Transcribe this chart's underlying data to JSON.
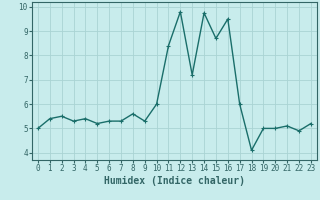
{
  "xlabel": "Humidex (Indice chaleur)",
  "x": [
    0,
    1,
    2,
    3,
    4,
    5,
    6,
    7,
    8,
    9,
    10,
    11,
    12,
    13,
    14,
    15,
    16,
    17,
    18,
    19,
    20,
    21,
    22,
    23
  ],
  "y": [
    5.0,
    5.4,
    5.5,
    5.3,
    5.4,
    5.2,
    5.3,
    5.3,
    5.6,
    5.3,
    6.0,
    8.4,
    9.8,
    7.2,
    9.75,
    8.7,
    9.5,
    6.0,
    4.1,
    5.0,
    5.0,
    5.1,
    4.9,
    5.2
  ],
  "line_color": "#1a6e6a",
  "marker": "+",
  "marker_size": 3,
  "background_color": "#c8ecec",
  "grid_color": "#aad4d4",
  "axis_color": "#336666",
  "ylim_min": 3.7,
  "ylim_max": 10.2,
  "xlim_min": -0.5,
  "xlim_max": 23.5,
  "yticks": [
    4,
    5,
    6,
    7,
    8,
    9,
    10
  ],
  "xticks": [
    0,
    1,
    2,
    3,
    4,
    5,
    6,
    7,
    8,
    9,
    10,
    11,
    12,
    13,
    14,
    15,
    16,
    17,
    18,
    19,
    20,
    21,
    22,
    23
  ],
  "xlabel_fontsize": 7,
  "tick_fontsize": 5.5,
  "linewidth": 1.0,
  "marker_edge_width": 0.8
}
